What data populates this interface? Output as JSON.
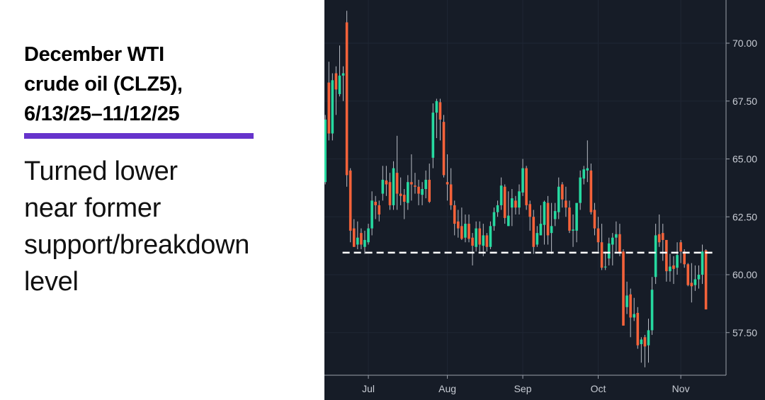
{
  "title_lines": [
    "December WTI",
    "crude oil (CLZ5),",
    "6/13/25–11/12/25"
  ],
  "subtitle_lines": [
    "Turned lower",
    "near former",
    "support/breakdown",
    "level"
  ],
  "colors": {
    "accent_rule": "#6633cc",
    "background": "#161c27",
    "up": "#26d9a0",
    "down": "#f4623a",
    "wick": "#b8bcc4",
    "axis": "#9aa0aa",
    "grid": "#1f2634",
    "reference_line": "#ffffff"
  },
  "chart_data": {
    "type": "candlestick",
    "title": "December WTI crude oil (CLZ5), 6/13/25–11/12/25",
    "ylim": [
      55.7,
      71.8
    ],
    "y_ticks": [
      "57.50",
      "60.00",
      "62.50",
      "65.00",
      "67.50",
      "70.00"
    ],
    "y_axis_position": "right",
    "x_ticks": [
      {
        "label": "Jul",
        "date": "7/1"
      },
      {
        "label": "Aug",
        "date": "8/1"
      },
      {
        "label": "Sep",
        "date": "9/2"
      },
      {
        "label": "Oct",
        "date": "10/1"
      },
      {
        "label": "Nov",
        "date": "11/3"
      }
    ],
    "grid": true,
    "reference_line": {
      "value": 60.95,
      "style": "dashed",
      "from": "6/23",
      "to": "11/12"
    },
    "candles_fields": [
      "date",
      "open",
      "high",
      "low",
      "close"
    ],
    "candles": [
      [
        "6/13",
        64.0,
        66.9,
        63.9,
        66.7
      ],
      [
        "6/16",
        68.3,
        69.2,
        65.8,
        66.1
      ],
      [
        "6/17",
        66.1,
        68.7,
        65.8,
        68.4
      ],
      [
        "6/18",
        68.7,
        69.0,
        66.9,
        68.0
      ],
      [
        "6/19",
        67.8,
        69.9,
        67.7,
        68.6
      ],
      [
        "6/20",
        68.6,
        69.0,
        67.5,
        68.7
      ],
      [
        "6/23",
        70.9,
        71.4,
        63.8,
        64.3
      ],
      [
        "6/24",
        64.5,
        64.6,
        61.4,
        61.9
      ],
      [
        "6/25",
        62.0,
        62.4,
        61.2,
        61.2
      ],
      [
        "6/26",
        61.3,
        62.3,
        61.1,
        61.6
      ],
      [
        "6/27",
        61.8,
        62.0,
        61.1,
        61.3
      ],
      [
        "6/30",
        61.2,
        61.9,
        60.9,
        61.5
      ],
      [
        "7/1",
        61.4,
        62.2,
        61.3,
        62.0
      ],
      [
        "7/2",
        62.0,
        63.6,
        61.7,
        63.2
      ],
      [
        "7/3",
        63.15,
        63.4,
        62.4,
        63.0
      ],
      [
        "7/7",
        63.0,
        63.2,
        62.3,
        62.6
      ],
      [
        "7/8",
        63.5,
        64.7,
        63.2,
        64.1
      ],
      [
        "7/9",
        64.07,
        64.7,
        63.4,
        63.9
      ],
      [
        "7/10",
        64.0,
        64.4,
        62.8,
        63.0
      ],
      [
        "7/11",
        63.0,
        64.9,
        62.8,
        64.6
      ],
      [
        "7/14",
        64.4,
        66.0,
        62.8,
        63.5
      ],
      [
        "7/15",
        63.5,
        64.2,
        63.0,
        63.4
      ],
      [
        "7/16",
        63.45,
        63.7,
        62.4,
        63.15
      ],
      [
        "7/17",
        63.1,
        64.3,
        62.8,
        64.0
      ],
      [
        "7/18",
        64.0,
        65.2,
        63.2,
        63.9
      ],
      [
        "7/21",
        63.85,
        64.4,
        63.5,
        63.8
      ],
      [
        "7/22",
        63.8,
        64.1,
        63.0,
        63.5
      ],
      [
        "7/23",
        63.45,
        64.0,
        63.0,
        63.7
      ],
      [
        "7/24",
        63.7,
        64.5,
        63.3,
        64.1
      ],
      [
        "7/25",
        64.1,
        64.8,
        63.1,
        63.15
      ],
      [
        "7/28",
        65.05,
        67.4,
        64.6,
        67.0
      ],
      [
        "7/29",
        67.0,
        67.6,
        65.9,
        67.5
      ],
      [
        "7/30",
        67.45,
        67.6,
        65.8,
        66.7
      ],
      [
        "7/31",
        66.6,
        66.9,
        64.2,
        64.3
      ],
      [
        "8/1",
        64.0,
        65.2,
        63.2,
        63.9
      ],
      [
        "8/4",
        63.9,
        64.6,
        62.8,
        63.0
      ],
      [
        "8/5",
        63.0,
        63.2,
        61.7,
        62.2
      ],
      [
        "8/6",
        62.3,
        62.8,
        61.6,
        62.0
      ],
      [
        "8/7",
        62.1,
        62.9,
        61.5,
        61.55
      ],
      [
        "8/8",
        61.6,
        62.6,
        61.4,
        62.2
      ],
      [
        "8/11",
        62.2,
        62.6,
        61.4,
        61.55
      ],
      [
        "8/12",
        61.6,
        61.8,
        60.4,
        61.25
      ],
      [
        "8/13",
        61.2,
        62.3,
        61.0,
        62.0
      ],
      [
        "8/14",
        62.0,
        62.3,
        61.0,
        61.3
      ],
      [
        "8/15",
        61.25,
        62.2,
        60.8,
        61.7
      ],
      [
        "8/18",
        61.7,
        61.8,
        61.0,
        61.2
      ],
      [
        "8/19",
        61.2,
        62.3,
        61.1,
        62.1
      ],
      [
        "8/20",
        62.1,
        62.9,
        61.9,
        62.7
      ],
      [
        "8/21",
        62.7,
        63.2,
        62.5,
        63.0
      ],
      [
        "8/22",
        63.0,
        64.2,
        62.8,
        63.85
      ],
      [
        "8/25",
        63.8,
        63.9,
        62.2,
        62.45
      ],
      [
        "8/26",
        62.1,
        63.6,
        62.1,
        62.55
      ],
      [
        "8/27",
        62.9,
        63.7,
        62.1,
        63.3
      ],
      [
        "8/28",
        63.2,
        63.4,
        62.6,
        62.9
      ],
      [
        "8/29",
        62.9,
        63.9,
        62.6,
        63.6
      ],
      [
        "9/2",
        63.55,
        65.0,
        63.4,
        64.6
      ],
      [
        "9/3",
        64.6,
        64.7,
        62.8,
        63.0
      ],
      [
        "9/4",
        63.05,
        63.2,
        61.9,
        62.5
      ],
      [
        "9/5",
        62.5,
        62.8,
        60.9,
        61.2
      ],
      [
        "9/8",
        61.3,
        62.1,
        61.2,
        61.8
      ],
      [
        "9/9",
        61.7,
        63.0,
        61.7,
        62.2
      ],
      [
        "9/10",
        62.15,
        63.2,
        61.3,
        63.15
      ],
      [
        "9/11",
        63.1,
        63.4,
        61.3,
        61.7
      ],
      [
        "9/12",
        61.8,
        63.1,
        60.9,
        62.1
      ],
      [
        "9/15",
        62.4,
        63.1,
        62.1,
        62.75
      ],
      [
        "9/16",
        62.7,
        64.2,
        62.4,
        63.8
      ],
      [
        "9/17",
        63.9,
        64.0,
        62.9,
        63.25
      ],
      [
        "9/18",
        63.2,
        63.8,
        62.5,
        62.9
      ],
      [
        "9/19",
        62.9,
        63.2,
        61.8,
        61.9
      ],
      [
        "9/22",
        61.9,
        62.6,
        61.2,
        61.95
      ],
      [
        "9/23",
        61.9,
        63.0,
        61.4,
        63.1
      ],
      [
        "9/24",
        63.1,
        64.5,
        62.8,
        64.2
      ],
      [
        "9/25",
        64.15,
        64.7,
        63.9,
        64.55
      ],
      [
        "9/26",
        64.5,
        65.8,
        64.0,
        64.6
      ],
      [
        "9/29",
        64.5,
        64.8,
        62.6,
        62.7
      ],
      [
        "9/30",
        62.8,
        63.1,
        61.7,
        62.0
      ],
      [
        "10/1",
        62.0,
        62.5,
        61.0,
        61.4
      ],
      [
        "10/2",
        61.4,
        62.2,
        60.2,
        60.3
      ],
      [
        "10/3",
        60.35,
        61.0,
        60.2,
        60.35
      ],
      [
        "10/6",
        60.7,
        61.6,
        60.4,
        61.35
      ],
      [
        "10/7",
        61.3,
        61.8,
        60.4,
        61.6
      ],
      [
        "10/8",
        61.6,
        62.3,
        61.0,
        61.75
      ],
      [
        "10/9",
        61.75,
        62.2,
        60.8,
        60.95
      ],
      [
        "10/10",
        61.0,
        61.1,
        57.8,
        57.8
      ],
      [
        "10/13",
        58.6,
        59.7,
        58.3,
        59.1
      ],
      [
        "10/14",
        59.15,
        59.4,
        57.3,
        58.15
      ],
      [
        "10/15",
        58.15,
        59.0,
        58.0,
        58.3
      ],
      [
        "10/16",
        58.35,
        58.6,
        56.8,
        56.95
      ],
      [
        "10/17",
        57.0,
        57.3,
        56.2,
        57.2
      ],
      [
        "10/20",
        57.3,
        57.4,
        56.0,
        56.9
      ],
      [
        "10/21",
        56.95,
        58.1,
        56.2,
        57.6
      ],
      [
        "10/22",
        57.6,
        59.9,
        57.4,
        59.35
      ],
      [
        "10/23",
        59.9,
        62.2,
        59.6,
        61.7
      ],
      [
        "10/24",
        61.75,
        62.6,
        61.2,
        61.4
      ],
      [
        "10/27",
        61.8,
        62.2,
        60.6,
        61.5
      ],
      [
        "10/28",
        61.5,
        61.5,
        59.7,
        60.15
      ],
      [
        "10/29",
        60.15,
        60.9,
        59.7,
        60.35
      ],
      [
        "10/30",
        60.4,
        60.8,
        59.6,
        60.25
      ],
      [
        "10/31",
        60.3,
        61.4,
        60.0,
        60.85
      ],
      [
        "11/3",
        61.4,
        61.5,
        60.5,
        61.0
      ],
      [
        "11/4",
        61.0,
        61.1,
        60.3,
        60.45
      ],
      [
        "11/5",
        60.45,
        60.5,
        59.5,
        59.55
      ],
      [
        "11/6",
        59.65,
        60.5,
        58.8,
        59.5
      ],
      [
        "11/7",
        59.55,
        60.4,
        59.3,
        59.8
      ],
      [
        "11/10",
        59.8,
        60.4,
        59.4,
        60.0
      ],
      [
        "11/11",
        60.0,
        61.3,
        59.6,
        61.0
      ],
      [
        "11/12",
        61.05,
        61.1,
        58.5,
        58.5
      ]
    ]
  }
}
